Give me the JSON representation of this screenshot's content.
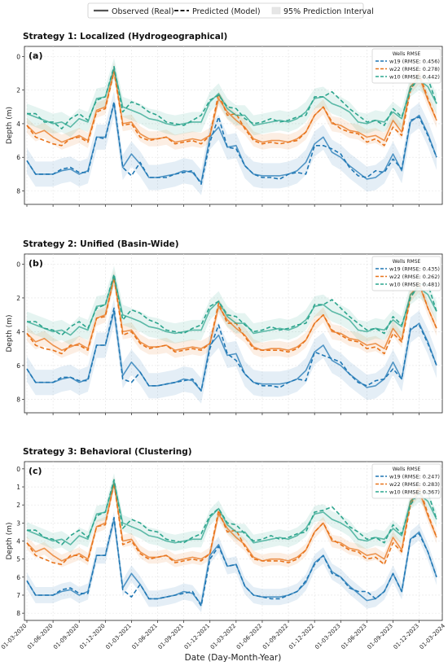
{
  "legend": {
    "observed": "Observed (Real)",
    "predicted": "Predicted (Model)",
    "interval": "95% Prediction Interval"
  },
  "xlabel": "Date (Day-Month-Year)",
  "ylabel": "Depth (m)",
  "colors": {
    "w19": "#1f77b4",
    "w22": "#e8731a",
    "w10": "#2ca58d"
  },
  "chart_data": [
    {
      "type": "line",
      "title": "Strategy 1: Localized (Hydrogeographical)",
      "panel_label": "(a)",
      "legend_title": "Wells RMSE",
      "legend_placement": "top-right",
      "yticks": [
        0,
        2,
        4,
        6,
        8
      ],
      "ylim": [
        8.8,
        -0.6
      ],
      "y_inverted": true,
      "grid": true,
      "x_start": "01-03-2020",
      "x_step_months": 1,
      "band_halfwidth": {
        "w19": 0.75,
        "w22": 0.45,
        "w10": 0.6
      },
      "series": [
        {
          "well": "w19",
          "label": "w19 (RMSE: 0.456)",
          "observed": [
            6.2,
            7.0,
            7.0,
            7.0,
            6.8,
            6.7,
            7.0,
            6.8,
            4.8,
            4.8,
            2.8,
            6.6,
            5.8,
            6.4,
            7.2,
            7.2,
            7.1,
            7.0,
            6.8,
            6.9,
            7.5,
            4.8,
            4.2,
            5.4,
            5.3,
            6.5,
            7.0,
            7.1,
            7.1,
            7.1,
            7.0,
            6.8,
            6.3,
            5.2,
            4.8,
            5.7,
            6.0,
            6.5,
            6.9,
            7.3,
            7.2,
            6.8,
            5.8,
            6.8,
            3.9,
            3.5,
            4.6,
            6.0
          ],
          "predicted": [
            6.2,
            7.0,
            7.0,
            7.0,
            6.7,
            6.6,
            6.9,
            6.9,
            4.8,
            4.9,
            2.7,
            6.6,
            7.1,
            6.3,
            7.2,
            7.2,
            7.2,
            7.0,
            6.9,
            6.8,
            7.6,
            5.1,
            3.6,
            5.4,
            5.5,
            6.5,
            7.0,
            7.2,
            7.2,
            7.3,
            7.0,
            6.9,
            7.0,
            5.3,
            5.3,
            5.5,
            5.8,
            6.6,
            7.1,
            7.2,
            6.8,
            6.9,
            6.1,
            6.7,
            3.8,
            3.6,
            4.7,
            6.0
          ]
        },
        {
          "well": "w22",
          "label": "w22 (RMSE: 0.278)",
          "observed": [
            4.1,
            4.6,
            4.4,
            4.8,
            5.1,
            4.9,
            4.7,
            5.0,
            3.2,
            3.0,
            0.8,
            4.0,
            3.9,
            4.6,
            4.9,
            4.9,
            4.8,
            5.1,
            5.0,
            4.9,
            5.0,
            4.7,
            2.5,
            3.3,
            3.8,
            4.2,
            4.9,
            5.1,
            5.0,
            5.0,
            5.1,
            4.9,
            4.5,
            3.5,
            3.0,
            4.0,
            4.1,
            4.4,
            4.5,
            4.8,
            4.7,
            5.0,
            3.8,
            4.5,
            1.8,
            1.2,
            2.6,
            3.8
          ],
          "predicted": [
            4.1,
            4.8,
            5.0,
            5.2,
            5.3,
            4.9,
            4.8,
            5.1,
            3.3,
            3.1,
            0.9,
            4.1,
            4.0,
            4.8,
            5.0,
            4.9,
            4.8,
            5.2,
            5.1,
            5.0,
            5.2,
            4.7,
            2.2,
            3.5,
            3.4,
            4.3,
            5.0,
            5.2,
            5.1,
            5.2,
            5.1,
            5.0,
            4.5,
            3.5,
            3.0,
            3.9,
            4.3,
            4.5,
            4.6,
            5.1,
            4.9,
            5.3,
            4.2,
            4.7,
            2.0,
            1.0,
            2.5,
            3.8
          ]
        },
        {
          "well": "w10",
          "label": "w10 (RMSE: 0.442)",
          "observed": [
            3.4,
            3.6,
            3.8,
            4.0,
            3.9,
            4.2,
            3.7,
            3.9,
            2.5,
            2.4,
            0.7,
            3.0,
            3.2,
            3.4,
            3.7,
            3.8,
            4.0,
            4.1,
            4.0,
            3.9,
            3.9,
            2.7,
            2.2,
            3.1,
            3.5,
            3.5,
            4.1,
            4.0,
            3.9,
            3.8,
            3.9,
            3.7,
            3.3,
            2.5,
            2.4,
            2.8,
            3.0,
            3.3,
            3.9,
            4.0,
            3.8,
            3.9,
            3.3,
            3.7,
            1.8,
            1.4,
            1.8,
            2.8
          ],
          "predicted": [
            3.4,
            3.4,
            3.9,
            3.9,
            4.3,
            3.7,
            3.4,
            3.8,
            2.6,
            2.4,
            0.6,
            3.3,
            2.7,
            2.9,
            3.3,
            3.5,
            3.9,
            4.0,
            4.1,
            3.8,
            3.5,
            2.6,
            2.3,
            3.0,
            3.1,
            3.7,
            4.0,
            3.9,
            3.7,
            3.9,
            3.8,
            3.6,
            3.5,
            2.4,
            2.4,
            2.1,
            2.6,
            3.1,
            3.5,
            3.9,
            3.8,
            4.1,
            3.1,
            3.6,
            2.0,
            1.2,
            1.3,
            2.8
          ]
        }
      ]
    },
    {
      "type": "line",
      "title": "Strategy 2: Unified (Basin-Wide)",
      "panel_label": "(b)",
      "legend_title": "Wells RMSE",
      "legend_placement": "top-right",
      "yticks": [
        0,
        2,
        4,
        6,
        8
      ],
      "ylim": [
        8.8,
        -0.6
      ],
      "y_inverted": true,
      "grid": true,
      "x_start": "01-03-2020",
      "x_step_months": 1,
      "band_halfwidth": {
        "w19": 0.75,
        "w22": 0.45,
        "w10": 0.6
      },
      "series": [
        {
          "well": "w19",
          "label": "w19 (RMSE: 0.435)",
          "observed": [
            6.2,
            7.0,
            7.0,
            7.0,
            6.8,
            6.7,
            7.0,
            6.8,
            4.8,
            4.8,
            2.8,
            6.6,
            5.8,
            6.4,
            7.2,
            7.2,
            7.1,
            7.0,
            6.8,
            6.9,
            7.5,
            4.8,
            4.2,
            5.4,
            5.3,
            6.5,
            7.0,
            7.1,
            7.1,
            7.1,
            7.0,
            6.8,
            6.3,
            5.2,
            4.8,
            5.7,
            6.0,
            6.5,
            6.9,
            7.3,
            7.2,
            6.8,
            5.8,
            6.8,
            3.9,
            3.5,
            4.6,
            6.0
          ],
          "predicted": [
            6.2,
            7.0,
            7.0,
            7.0,
            6.7,
            6.7,
            6.9,
            6.9,
            4.8,
            4.8,
            2.6,
            6.8,
            7.0,
            6.4,
            7.2,
            7.2,
            7.1,
            7.0,
            6.9,
            6.8,
            7.5,
            5.0,
            3.6,
            5.3,
            5.7,
            6.5,
            7.0,
            7.2,
            7.2,
            7.3,
            7.0,
            6.8,
            6.9,
            5.2,
            5.4,
            5.6,
            5.8,
            6.5,
            7.0,
            7.2,
            6.9,
            6.8,
            6.2,
            6.8,
            3.8,
            3.6,
            4.7,
            6.0
          ]
        },
        {
          "well": "w22",
          "label": "w22 (RMSE: 0.262)",
          "observed": [
            4.1,
            4.6,
            4.4,
            4.8,
            5.1,
            4.9,
            4.7,
            5.0,
            3.2,
            3.0,
            0.8,
            4.0,
            3.9,
            4.6,
            4.9,
            4.9,
            4.8,
            5.1,
            5.0,
            4.9,
            5.0,
            4.7,
            2.5,
            3.3,
            3.8,
            4.2,
            4.9,
            5.1,
            5.0,
            5.0,
            5.1,
            4.9,
            4.5,
            3.5,
            3.0,
            4.0,
            4.1,
            4.4,
            4.5,
            4.8,
            4.7,
            5.0,
            3.8,
            4.5,
            1.8,
            1.2,
            2.6,
            3.8
          ],
          "predicted": [
            4.1,
            4.8,
            5.0,
            5.1,
            5.3,
            4.8,
            4.8,
            5.1,
            3.2,
            3.1,
            0.8,
            4.2,
            4.0,
            4.7,
            5.0,
            4.9,
            4.8,
            5.2,
            5.1,
            5.0,
            5.1,
            4.7,
            2.3,
            3.5,
            3.5,
            4.3,
            5.0,
            5.1,
            5.1,
            5.1,
            5.2,
            5.0,
            4.5,
            3.5,
            3.0,
            3.9,
            4.2,
            4.5,
            4.6,
            5.0,
            4.9,
            5.3,
            4.1,
            4.6,
            2.0,
            1.1,
            2.6,
            3.8
          ]
        },
        {
          "well": "w10",
          "label": "w10 (RMSE: 0.481)",
          "observed": [
            3.4,
            3.6,
            3.8,
            4.0,
            3.9,
            4.2,
            3.7,
            3.9,
            2.5,
            2.4,
            0.7,
            3.0,
            3.2,
            3.4,
            3.7,
            3.8,
            4.0,
            4.1,
            4.0,
            3.9,
            3.9,
            2.7,
            2.2,
            3.1,
            3.5,
            3.5,
            4.1,
            4.0,
            3.9,
            3.8,
            3.9,
            3.7,
            3.3,
            2.5,
            2.4,
            2.8,
            3.0,
            3.3,
            3.9,
            4.0,
            3.8,
            3.9,
            3.3,
            3.7,
            1.8,
            1.4,
            1.8,
            2.8
          ],
          "predicted": [
            3.4,
            3.4,
            3.8,
            3.9,
            4.2,
            3.7,
            3.4,
            3.8,
            2.6,
            2.4,
            0.6,
            3.3,
            2.7,
            2.9,
            3.3,
            3.5,
            3.9,
            4.0,
            4.1,
            3.8,
            3.6,
            2.5,
            2.2,
            3.0,
            3.1,
            3.6,
            4.0,
            3.9,
            3.7,
            3.9,
            3.8,
            3.6,
            3.5,
            2.4,
            2.4,
            2.1,
            2.6,
            3.1,
            3.5,
            3.9,
            3.8,
            4.1,
            3.1,
            3.6,
            2.0,
            1.2,
            1.2,
            2.8
          ]
        }
      ]
    },
    {
      "type": "line",
      "title": "Strategy 3: Behavioral (Clustering)",
      "panel_label": "(c)",
      "legend_title": "Wells RMSE",
      "legend_placement": "top-right",
      "yticks": [
        0,
        1,
        2,
        3,
        4,
        5,
        6,
        7,
        8
      ],
      "ylim": [
        8.4,
        -0.4
      ],
      "y_inverted": true,
      "grid": true,
      "x_start": "01-03-2020",
      "x_step_months": 1,
      "band_halfwidth": {
        "w19": 0.45,
        "w22": 0.35,
        "w10": 0.45
      },
      "series": [
        {
          "well": "w19",
          "label": "w19 (RMSE: 0.247)",
          "observed": [
            6.2,
            7.0,
            7.0,
            7.0,
            6.8,
            6.7,
            7.0,
            6.8,
            4.8,
            4.8,
            2.8,
            6.6,
            5.8,
            6.4,
            7.2,
            7.2,
            7.1,
            7.0,
            6.8,
            6.9,
            7.5,
            4.8,
            4.2,
            5.4,
            5.3,
            6.5,
            7.0,
            7.1,
            7.1,
            7.1,
            7.0,
            6.8,
            6.3,
            5.2,
            4.8,
            5.7,
            6.0,
            6.5,
            6.9,
            7.3,
            7.2,
            6.8,
            5.8,
            6.8,
            3.9,
            3.5,
            4.6,
            6.0
          ],
          "predicted": [
            6.2,
            7.0,
            7.0,
            7.0,
            6.7,
            6.6,
            6.9,
            6.9,
            4.8,
            4.8,
            2.7,
            6.7,
            7.1,
            6.4,
            7.2,
            7.2,
            7.1,
            7.0,
            6.9,
            6.8,
            7.6,
            5.0,
            4.3,
            5.4,
            5.3,
            6.5,
            7.0,
            7.1,
            7.2,
            7.2,
            7.0,
            6.8,
            6.2,
            5.3,
            4.8,
            5.8,
            6.0,
            6.6,
            6.8,
            6.8,
            7.2,
            6.8,
            5.8,
            6.8,
            3.9,
            3.6,
            4.6,
            6.0
          ]
        },
        {
          "well": "w22",
          "label": "w22 (RMSE: 0.283)",
          "observed": [
            4.1,
            4.6,
            4.4,
            4.8,
            5.1,
            4.9,
            4.7,
            5.0,
            3.2,
            3.0,
            0.8,
            4.0,
            3.9,
            4.6,
            4.9,
            4.9,
            4.8,
            5.1,
            5.0,
            4.9,
            5.0,
            4.7,
            2.5,
            3.3,
            3.8,
            4.2,
            4.9,
            5.1,
            5.0,
            5.0,
            5.1,
            4.9,
            4.5,
            3.5,
            3.0,
            4.0,
            4.1,
            4.4,
            4.5,
            4.8,
            4.7,
            5.0,
            3.8,
            4.5,
            1.8,
            1.2,
            2.6,
            3.8
          ],
          "predicted": [
            4.1,
            4.8,
            5.0,
            5.2,
            5.3,
            4.8,
            4.8,
            5.1,
            3.2,
            3.1,
            0.8,
            4.2,
            4.0,
            4.7,
            5.0,
            4.9,
            4.8,
            5.2,
            5.1,
            5.0,
            5.1,
            4.7,
            2.3,
            3.5,
            3.4,
            4.3,
            5.0,
            5.1,
            5.1,
            5.1,
            5.2,
            5.0,
            4.5,
            3.5,
            3.0,
            3.9,
            4.2,
            4.5,
            4.6,
            5.0,
            4.9,
            5.3,
            4.1,
            4.6,
            2.0,
            1.0,
            2.5,
            3.8
          ]
        },
        {
          "well": "w10",
          "label": "w10 (RMSE: 0.367)",
          "observed": [
            3.4,
            3.6,
            3.8,
            4.0,
            3.9,
            4.2,
            3.7,
            3.9,
            2.5,
            2.4,
            0.7,
            3.0,
            3.2,
            3.4,
            3.7,
            3.8,
            4.0,
            4.1,
            4.0,
            3.9,
            3.9,
            2.7,
            2.2,
            3.1,
            3.5,
            3.5,
            4.1,
            4.0,
            3.9,
            3.8,
            3.9,
            3.7,
            3.3,
            2.5,
            2.4,
            2.8,
            3.0,
            3.3,
            3.9,
            4.0,
            3.8,
            3.9,
            3.3,
            3.7,
            1.8,
            1.4,
            1.8,
            2.8
          ],
          "predicted": [
            3.4,
            3.4,
            3.8,
            3.9,
            4.2,
            3.7,
            3.4,
            3.8,
            2.6,
            2.4,
            0.6,
            3.3,
            2.8,
            3.0,
            3.4,
            3.5,
            3.9,
            4.0,
            4.1,
            3.8,
            3.6,
            2.6,
            2.2,
            3.0,
            3.1,
            3.6,
            4.0,
            3.9,
            3.7,
            3.9,
            3.8,
            3.6,
            3.5,
            2.4,
            2.3,
            2.1,
            2.6,
            3.2,
            3.5,
            3.9,
            3.8,
            4.1,
            3.1,
            3.6,
            2.0,
            1.3,
            1.3,
            2.8
          ]
        }
      ]
    }
  ],
  "xticks": [
    "01-03-2020",
    "01-06-2020",
    "01-09-2020",
    "01-12-2020",
    "01-03-2021",
    "01-06-2021",
    "01-09-2021",
    "01-12-2021",
    "01-03-2022",
    "01-06-2022",
    "01-09-2022",
    "01-12-2022",
    "01-03-2023",
    "01-06-2023",
    "01-09-2023",
    "01-12-2023",
    "01-03-2024"
  ]
}
